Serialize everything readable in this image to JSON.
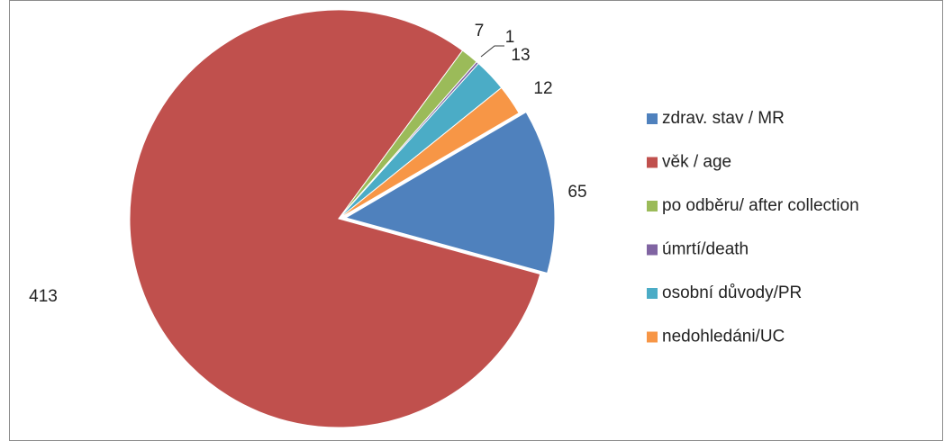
{
  "chart_data": {
    "type": "pie",
    "categories": [
      "zdrav. stav / MR",
      "věk / age",
      "po odběru/ after collection",
      "úmrtí/death",
      "osobní důvody/PR",
      "nedohledáni/UC"
    ],
    "values": [
      65,
      413,
      7,
      1,
      13,
      12
    ],
    "colors": [
      "#4f81bd",
      "#c0504d",
      "#9bbb59",
      "#8064a2",
      "#4bacc6",
      "#f79646"
    ],
    "legend": "right"
  }
}
